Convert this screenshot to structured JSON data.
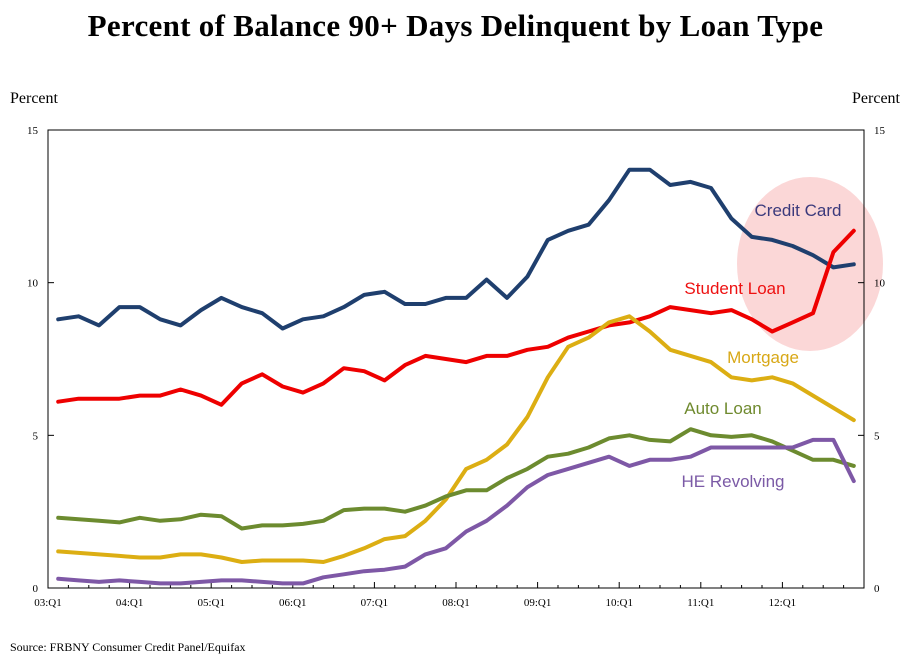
{
  "chart_data": {
    "type": "line",
    "title": "Percent of Balance 90+ Days Delinquent by Loan Type",
    "ylabel_left": "Percent",
    "ylabel_right": "Percent",
    "source": "Source: FRBNY Consumer Credit Panel/Equifax",
    "ylim": [
      0,
      15
    ],
    "yticks": [
      "0",
      "5",
      "10",
      "15"
    ],
    "xticks": [
      "03:Q1",
      "04:Q1",
      "05:Q1",
      "06:Q1",
      "07:Q1",
      "08:Q1",
      "09:Q1",
      "10:Q1",
      "11:Q1",
      "12:Q1"
    ],
    "x": [
      "03:Q1",
      "03:Q2",
      "03:Q3",
      "03:Q4",
      "04:Q1",
      "04:Q2",
      "04:Q3",
      "04:Q4",
      "05:Q1",
      "05:Q2",
      "05:Q3",
      "05:Q4",
      "06:Q1",
      "06:Q2",
      "06:Q3",
      "06:Q4",
      "07:Q1",
      "07:Q2",
      "07:Q3",
      "07:Q4",
      "08:Q1",
      "08:Q2",
      "08:Q3",
      "08:Q4",
      "09:Q1",
      "09:Q2",
      "09:Q3",
      "09:Q4",
      "10:Q1",
      "10:Q2",
      "10:Q3",
      "10:Q4",
      "11:Q1",
      "11:Q2",
      "11:Q3",
      "11:Q4",
      "12:Q1",
      "12:Q2",
      "12:Q3",
      "12:Q4"
    ],
    "series": [
      {
        "name": "Credit Card",
        "label_color": "#3b3a7c",
        "color": "#1f3f6e",
        "values": [
          8.8,
          8.9,
          8.6,
          9.2,
          9.2,
          8.8,
          8.6,
          9.1,
          9.5,
          9.2,
          9.0,
          8.5,
          8.8,
          8.9,
          9.2,
          9.6,
          9.7,
          9.3,
          9.3,
          9.5,
          9.5,
          10.1,
          9.5,
          10.2,
          11.4,
          11.7,
          11.9,
          12.7,
          13.7,
          13.7,
          13.2,
          13.3,
          13.1,
          12.1,
          11.5,
          11.4,
          11.2,
          10.9,
          10.5,
          10.6
        ]
      },
      {
        "name": "Student Loan",
        "label_color": "#ee1111",
        "color": "#ee0000",
        "values": [
          6.1,
          6.2,
          6.2,
          6.2,
          6.3,
          6.3,
          6.5,
          6.3,
          6.0,
          6.7,
          7.0,
          6.6,
          6.4,
          6.7,
          7.2,
          7.1,
          6.8,
          7.3,
          7.6,
          7.5,
          7.4,
          7.6,
          7.6,
          7.8,
          7.9,
          8.2,
          8.4,
          8.6,
          8.7,
          8.9,
          9.2,
          9.1,
          9.0,
          9.1,
          8.8,
          8.4,
          8.7,
          9.0,
          11.0,
          11.7
        ]
      },
      {
        "name": "Mortgage",
        "label_color": "#d8a817",
        "color": "#dcae13",
        "values": [
          1.2,
          1.15,
          1.1,
          1.05,
          1.0,
          1.0,
          1.1,
          1.1,
          1.0,
          0.85,
          0.9,
          0.9,
          0.9,
          0.85,
          1.05,
          1.3,
          1.6,
          1.7,
          2.2,
          2.9,
          3.9,
          4.2,
          4.7,
          5.6,
          6.9,
          7.9,
          8.2,
          8.7,
          8.9,
          8.4,
          7.8,
          7.6,
          7.4,
          6.9,
          6.8,
          6.9,
          6.7,
          6.3,
          5.9,
          5.5
        ]
      },
      {
        "name": "Auto Loan",
        "label_color": "#6f8a2e",
        "color": "#6c8b2f",
        "values": [
          2.3,
          2.25,
          2.2,
          2.15,
          2.3,
          2.2,
          2.25,
          2.4,
          2.35,
          1.95,
          2.05,
          2.05,
          2.1,
          2.2,
          2.55,
          2.6,
          2.6,
          2.5,
          2.7,
          3.0,
          3.2,
          3.2,
          3.6,
          3.9,
          4.3,
          4.4,
          4.6,
          4.9,
          5.0,
          4.85,
          4.8,
          5.2,
          5.0,
          4.95,
          5.0,
          4.8,
          4.5,
          4.2,
          4.2,
          4.0
        ]
      },
      {
        "name": "HE Revolving",
        "label_color": "#7b5aa6",
        "color": "#7e58a6",
        "values": [
          0.3,
          0.25,
          0.2,
          0.25,
          0.2,
          0.15,
          0.15,
          0.2,
          0.25,
          0.25,
          0.2,
          0.15,
          0.15,
          0.35,
          0.45,
          0.55,
          0.6,
          0.7,
          1.1,
          1.3,
          1.85,
          2.2,
          2.7,
          3.3,
          3.7,
          3.9,
          4.1,
          4.3,
          4.0,
          4.2,
          4.2,
          4.3,
          4.6,
          4.6,
          4.6,
          4.6,
          4.6,
          4.85,
          4.85,
          3.5
        ]
      }
    ],
    "annotation": "highlight-ellipse-around-recent-credit-card-and-student-loan"
  }
}
